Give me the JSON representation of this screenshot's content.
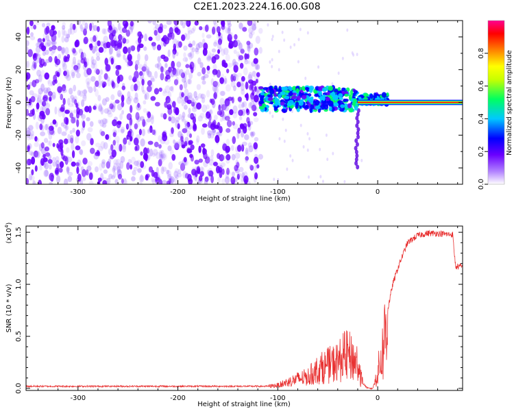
{
  "title": "C2E1.2023.224.16.00.G08",
  "chart_data": [
    {
      "type": "heatmap",
      "xlabel": "Height of straight line (km)",
      "ylabel": "Frequency (Hz)",
      "xlim": [
        -352,
        85
      ],
      "ylim": [
        -50,
        50
      ],
      "xticks": [
        -300,
        -200,
        -100,
        0
      ],
      "yticks": [
        40,
        20,
        0,
        -20,
        -40
      ],
      "colorbar": {
        "label": "Normalized spectral amplitude",
        "ticks": [
          "0.0",
          "0.2",
          "0.4",
          "0.6",
          "0.8"
        ],
        "tick_values": [
          0.0,
          0.2,
          0.4,
          0.6,
          0.8
        ],
        "range": [
          0,
          1
        ],
        "colormap": [
          "#ffffff",
          "#6a00ff",
          "#0000ff",
          "#00c8ff",
          "#00ff60",
          "#ffff00",
          "#ff8000",
          "#ff0000",
          "#ff0080"
        ]
      },
      "regions": [
        {
          "x_range": [
            -352,
            -117
          ],
          "y_range": [
            -50,
            50
          ],
          "amplitude": [
            0.0,
            0.15
          ],
          "description_color": "#7a00ff"
        },
        {
          "x_range": [
            -117,
            10
          ],
          "y_range": [
            -5,
            10
          ],
          "amplitude": [
            0.15,
            0.5
          ]
        },
        {
          "x_range": [
            10,
            85
          ],
          "y_range": [
            -1,
            1
          ],
          "amplitude": [
            0.9,
            1.0
          ]
        }
      ]
    },
    {
      "type": "line",
      "xlabel": "Height of straight line (km)",
      "ylabel": "SNR (10 * v/v)",
      "y_scale_note": "(x10^4)",
      "y_scale_base": "(x10",
      "y_scale_exp": "4",
      "y_scale_close": ")",
      "xlim": [
        -352,
        85
      ],
      "ylim": [
        -0.02,
        1.56
      ],
      "xticks": [
        -300,
        -200,
        -100,
        0
      ],
      "yticks": [
        0.0,
        0.5,
        1.0,
        1.5
      ],
      "ytick_labels": [
        "0.0",
        "0.5",
        "1.0",
        "1.5"
      ],
      "color": "#e83030",
      "x": [
        -352,
        -300,
        -200,
        -130,
        -110,
        -100,
        -90,
        -80,
        -70,
        -60,
        -50,
        -40,
        -35,
        -30,
        -25,
        -20,
        -15,
        -10,
        -5,
        0,
        5,
        10,
        15,
        20,
        25,
        30,
        40,
        50,
        60,
        70,
        75,
        78,
        85
      ],
      "y": [
        0.02,
        0.02,
        0.02,
        0.02,
        0.02,
        0.03,
        0.06,
        0.09,
        0.11,
        0.18,
        0.22,
        0.25,
        0.3,
        0.32,
        0.28,
        0.25,
        0.05,
        0.0,
        0.0,
        0.15,
        0.35,
        0.75,
        1.0,
        1.15,
        1.28,
        1.4,
        1.47,
        1.49,
        1.49,
        1.48,
        1.48,
        1.17,
        1.17
      ]
    }
  ]
}
